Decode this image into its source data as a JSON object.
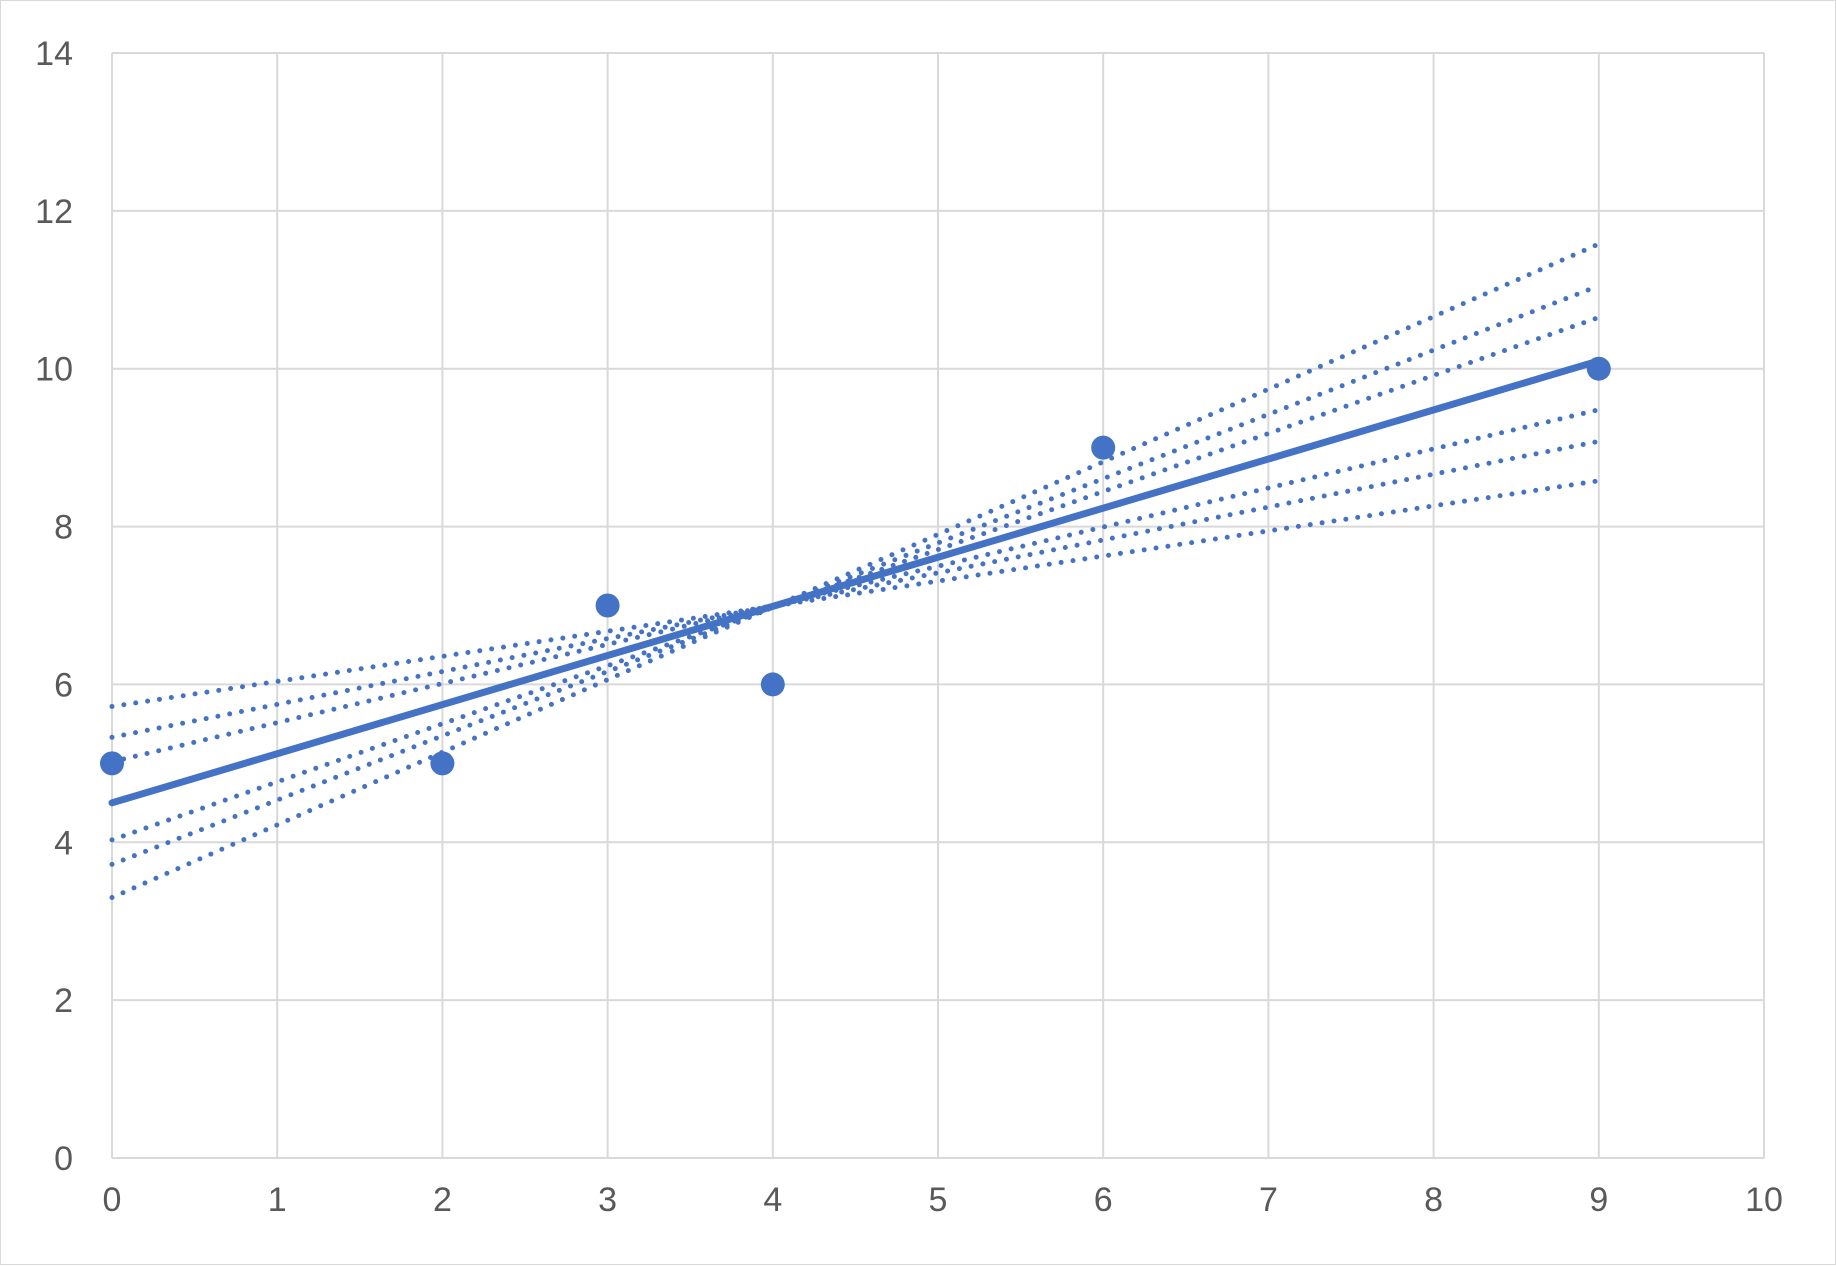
{
  "chart_data": {
    "type": "scatter",
    "title": "",
    "xlabel": "",
    "ylabel": "",
    "xlim": [
      0,
      10
    ],
    "ylim": [
      0,
      14
    ],
    "x_ticks": [
      0,
      1,
      2,
      3,
      4,
      5,
      6,
      7,
      8,
      9,
      10
    ],
    "y_ticks": [
      0,
      2,
      4,
      6,
      8,
      10,
      12,
      14
    ],
    "grid": true,
    "legend": "none",
    "colors": {
      "series": "#4472c4",
      "grid": "#d9d9d9",
      "tick_text": "#595959",
      "frame": "#d9d9d9"
    },
    "series": [
      {
        "kind": "points",
        "x": [
          0,
          2,
          3,
          4,
          6,
          9
        ],
        "y": [
          5,
          5,
          7,
          6,
          9,
          10
        ]
      },
      {
        "kind": "fit-line",
        "style": "solid",
        "x": [
          0,
          9
        ],
        "y": [
          4.5,
          10.1
        ]
      }
    ],
    "bands": [
      {
        "style": "dotted",
        "x": [
          0,
          9
        ],
        "y": [
          5.72,
          8.58
        ]
      },
      {
        "style": "dotted",
        "x": [
          0,
          9
        ],
        "y": [
          5.33,
          9.08
        ]
      },
      {
        "style": "dotted",
        "x": [
          0,
          9
        ],
        "y": [
          5.02,
          9.48
        ]
      },
      {
        "style": "dotted",
        "x": [
          0,
          9
        ],
        "y": [
          4.03,
          10.65
        ]
      },
      {
        "style": "dotted",
        "x": [
          0,
          9
        ],
        "y": [
          3.72,
          11.05
        ]
      },
      {
        "style": "dotted",
        "x": [
          0,
          9
        ],
        "y": [
          3.3,
          11.58
        ]
      }
    ]
  }
}
